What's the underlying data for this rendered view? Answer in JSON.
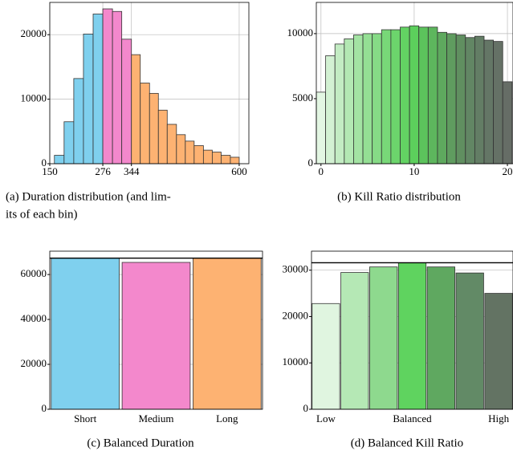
{
  "chart_data": [
    {
      "type": "histogram",
      "caption": [
        "(a) Duration distribution (and lim-",
        "its of each bin)"
      ],
      "bins": [
        161,
        184,
        207,
        230,
        253,
        276,
        299,
        321,
        344,
        365,
        387,
        408,
        429,
        451,
        472,
        493,
        515,
        536,
        557,
        579,
        600
      ],
      "values": [
        1300,
        6500,
        13200,
        20100,
        23200,
        24000,
        23600,
        19300,
        16900,
        12500,
        10900,
        8300,
        6100,
        4500,
        3500,
        2800,
        2100,
        1800,
        1300,
        1000
      ],
      "colors": [
        "#7fd0ee",
        "#7fd0ee",
        "#7fd0ee",
        "#7fd0ee",
        "#7fd0ee",
        "#f388cc",
        "#f388cc",
        "#f388cc",
        "#fdb272",
        "#fdb272",
        "#fdb272",
        "#fdb272",
        "#fdb272",
        "#fdb272",
        "#fdb272",
        "#fdb272",
        "#fdb272",
        "#fdb272",
        "#fdb272",
        "#fdb272"
      ],
      "xlim": [
        150,
        623
      ],
      "xticks": [
        150,
        276,
        344,
        600
      ],
      "ylim": [
        0,
        25000
      ],
      "yticks": [
        0,
        10000,
        20000
      ],
      "grid": true
    },
    {
      "type": "histogram",
      "caption": [
        "(b) Kill Ratio distribution"
      ],
      "bins": [
        -0.5,
        0.5,
        1.5,
        2.5,
        3.5,
        4.5,
        5.5,
        6.5,
        7.5,
        8.5,
        9.5,
        10.5,
        11.5,
        12.5,
        13.5,
        14.5,
        15.5,
        16.5,
        17.5,
        18.5,
        19.5,
        20.5
      ],
      "values": [
        5500,
        8300,
        9200,
        9600,
        9900,
        10000,
        10000,
        10300,
        10300,
        10500,
        10600,
        10500,
        10500,
        10100,
        10000,
        9900,
        9700,
        9800,
        9500,
        9400,
        6300
      ],
      "colors": [
        "#e3f6e3",
        "#d3f1d3",
        "#c3ecc3",
        "#b3e8b3",
        "#a3e3a3",
        "#94df94",
        "#86db86",
        "#78d878",
        "#6cd56c",
        "#63d363",
        "#5ccf5c",
        "#5cc35c",
        "#5db65d",
        "#5ea95e",
        "#5f9c5f",
        "#608f60",
        "#628664",
        "#637d65",
        "#647666",
        "#657166",
        "#666d66"
      ],
      "xlim": [
        -0.5,
        20.6
      ],
      "xticks": [
        0,
        10,
        20
      ],
      "ylim": [
        0,
        12400
      ],
      "yticks": [
        0,
        5000,
        10000
      ],
      "grid": true
    },
    {
      "type": "bar",
      "caption": [
        "(c) Balanced Duration"
      ],
      "categories": [
        "Short",
        "Medium",
        "Long"
      ],
      "values": [
        67300,
        65400,
        67300
      ],
      "colors": [
        "#7fd0ee",
        "#f388cc",
        "#fdb272"
      ],
      "hline": 67300,
      "ylim": [
        0,
        70400
      ],
      "yticks": [
        0,
        20000,
        40000,
        60000
      ],
      "grid": true
    },
    {
      "type": "bar",
      "caption": [
        "(d) Balanced Kill Ratio"
      ],
      "categories": [
        "Low",
        null,
        null,
        "Balanced",
        null,
        null,
        "High"
      ],
      "values": [
        22800,
        29500,
        30700,
        31600,
        30700,
        29400,
        25000
      ],
      "colors": [
        "#e0f5e0",
        "#b5e8b5",
        "#8ed98e",
        "#5fd35f",
        "#5fa860",
        "#628a66",
        "#637363"
      ],
      "hline": 31600,
      "ylim": [
        0,
        34100
      ],
      "yticks": [
        0,
        10000,
        20000,
        30000
      ],
      "grid": true
    }
  ]
}
